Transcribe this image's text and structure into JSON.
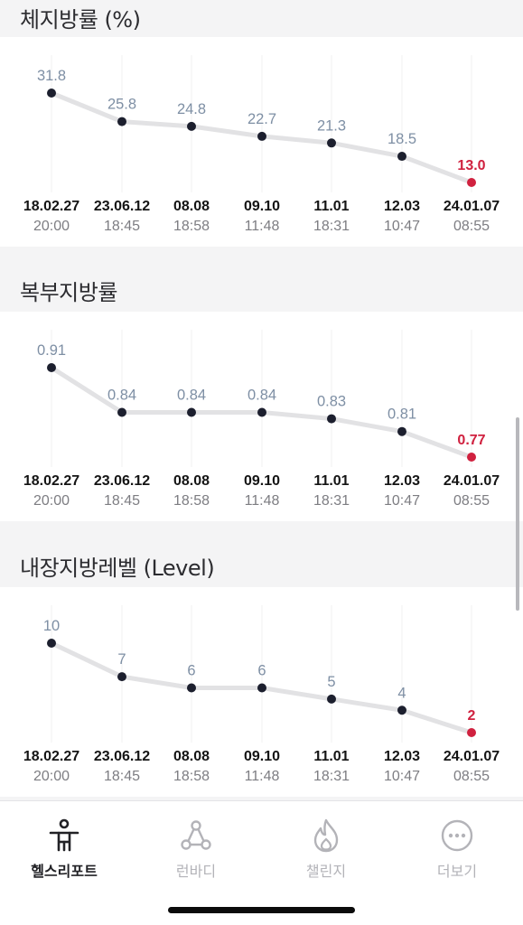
{
  "sections": [
    {
      "title": "체지방률 (%)",
      "chart_data": {
        "type": "line",
        "x": [
          "18.02.27 20:00",
          "23.06.12 18:45",
          "08.08 18:58",
          "09.10 11:48",
          "11.01 18:31",
          "12.03 10:47",
          "24.01.07 08:55"
        ],
        "dates": [
          "18.02.27",
          "23.06.12",
          "08.08",
          "09.10",
          "11.01",
          "12.03",
          "24.01.07"
        ],
        "times": [
          "20:00",
          "18:45",
          "18:58",
          "11:48",
          "18:31",
          "10:47",
          "08:55"
        ],
        "values": [
          31.8,
          25.8,
          24.8,
          22.7,
          21.3,
          18.5,
          13.0
        ],
        "labels": [
          "31.8",
          "25.8",
          "24.8",
          "22.7",
          "21.3",
          "18.5",
          "13.0"
        ],
        "ylim": [
          13.0,
          31.8
        ]
      }
    },
    {
      "title": "복부지방률",
      "chart_data": {
        "type": "line",
        "x": [
          "18.02.27 20:00",
          "23.06.12 18:45",
          "08.08 18:58",
          "09.10 11:48",
          "11.01 18:31",
          "12.03 10:47",
          "24.01.07 08:55"
        ],
        "dates": [
          "18.02.27",
          "23.06.12",
          "08.08",
          "09.10",
          "11.01",
          "12.03",
          "24.01.07"
        ],
        "times": [
          "20:00",
          "18:45",
          "18:58",
          "11:48",
          "18:31",
          "10:47",
          "08:55"
        ],
        "values": [
          0.91,
          0.84,
          0.84,
          0.84,
          0.83,
          0.81,
          0.77
        ],
        "labels": [
          "0.91",
          "0.84",
          "0.84",
          "0.84",
          "0.83",
          "0.81",
          "0.77"
        ],
        "ylim": [
          0.77,
          0.91
        ]
      }
    },
    {
      "title": "내장지방레벨 (Level)",
      "chart_data": {
        "type": "line",
        "x": [
          "18.02.27 20:00",
          "23.06.12 18:45",
          "08.08 18:58",
          "09.10 11:48",
          "11.01 18:31",
          "12.03 10:47",
          "24.01.07 08:55"
        ],
        "dates": [
          "18.02.27",
          "23.06.12",
          "08.08",
          "09.10",
          "11.01",
          "12.03",
          "24.01.07"
        ],
        "times": [
          "20:00",
          "18:45",
          "18:58",
          "11:48",
          "18:31",
          "10:47",
          "08:55"
        ],
        "values": [
          10,
          7,
          6,
          6,
          5,
          4,
          2
        ],
        "labels": [
          "10",
          "7",
          "6",
          "6",
          "5",
          "4",
          "2"
        ],
        "ylim": [
          2,
          10
        ]
      }
    }
  ],
  "colors": {
    "point": "#1c1f2e",
    "last_point": "#d0213f",
    "line": "#e2e2e4",
    "value_label": "#7e8fa4",
    "gridline": "#f0f0f2"
  },
  "tabs": [
    {
      "label": "헬스리포트",
      "icon": "person-figure-icon",
      "active": true
    },
    {
      "label": "런바디",
      "icon": "connected-nodes-icon",
      "active": false
    },
    {
      "label": "챌린지",
      "icon": "flame-icon",
      "active": false
    },
    {
      "label": "더보기",
      "icon": "more-dots-icon",
      "active": false
    }
  ]
}
